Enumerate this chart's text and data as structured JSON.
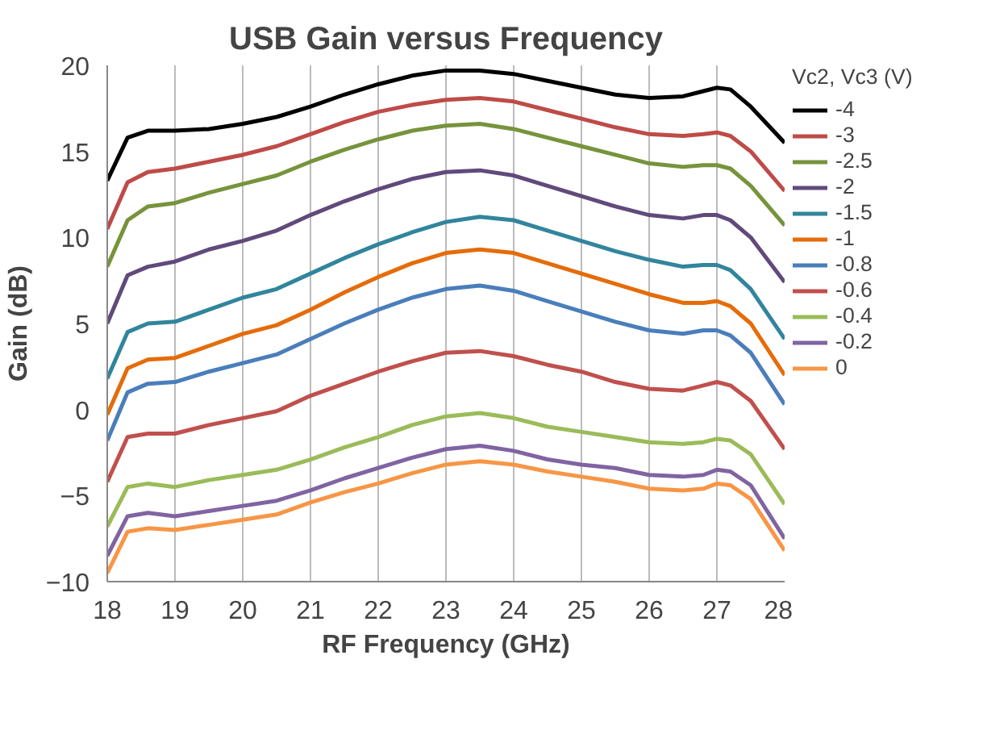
{
  "chart_data": {
    "type": "line",
    "title": "USB Gain versus Frequency",
    "xlabel": "RF Frequency (GHz)",
    "ylabel": "Gain (dB)",
    "legend_title": "Vc2, Vc3 (V)",
    "x": [
      18,
      18.3,
      18.6,
      19,
      19.5,
      20,
      20.5,
      21,
      21.5,
      22,
      22.5,
      23,
      23.5,
      24,
      24.5,
      25,
      25.5,
      26,
      26.5,
      26.8,
      27,
      27.2,
      27.5,
      28
    ],
    "xlim": [
      18,
      28
    ],
    "xticks": [
      18,
      19,
      20,
      21,
      22,
      23,
      24,
      25,
      26,
      27,
      28
    ],
    "ylim": [
      -10,
      20
    ],
    "yticks": [
      -10,
      -5,
      0,
      5,
      10,
      15,
      20
    ],
    "grid": "x",
    "legend": "right",
    "marker": "none",
    "line_style": "solid",
    "series": [
      {
        "name": "-4",
        "color": "#000000",
        "values": [
          13.3,
          15.8,
          16.2,
          16.2,
          16.3,
          16.6,
          17.0,
          17.6,
          18.3,
          18.9,
          19.4,
          19.7,
          19.7,
          19.5,
          19.1,
          18.7,
          18.3,
          18.1,
          18.2,
          18.5,
          18.7,
          18.6,
          17.6,
          15.5
        ]
      },
      {
        "name": "-3",
        "color": "#be4b48",
        "values": [
          10.5,
          13.2,
          13.8,
          14.0,
          14.4,
          14.8,
          15.3,
          16.0,
          16.7,
          17.3,
          17.7,
          18.0,
          18.1,
          17.9,
          17.4,
          16.9,
          16.4,
          16.0,
          15.9,
          16.0,
          16.1,
          15.9,
          15.0,
          12.7
        ]
      },
      {
        "name": "-2.5",
        "color": "#77933c",
        "values": [
          8.3,
          11.0,
          11.8,
          12.0,
          12.6,
          13.1,
          13.6,
          14.4,
          15.1,
          15.7,
          16.2,
          16.5,
          16.6,
          16.3,
          15.8,
          15.3,
          14.8,
          14.3,
          14.1,
          14.2,
          14.2,
          14.0,
          13.0,
          10.7
        ]
      },
      {
        "name": "-2",
        "color": "#604a7b",
        "values": [
          5.0,
          7.8,
          8.3,
          8.6,
          9.3,
          9.8,
          10.4,
          11.3,
          12.1,
          12.8,
          13.4,
          13.8,
          13.9,
          13.6,
          13.0,
          12.4,
          11.8,
          11.3,
          11.1,
          11.3,
          11.3,
          11.0,
          10.0,
          7.4
        ]
      },
      {
        "name": "-1.5",
        "color": "#31859c",
        "values": [
          1.8,
          4.5,
          5.0,
          5.1,
          5.8,
          6.5,
          7.0,
          7.9,
          8.8,
          9.6,
          10.3,
          10.9,
          11.2,
          11.0,
          10.4,
          9.8,
          9.2,
          8.7,
          8.3,
          8.4,
          8.4,
          8.1,
          7.0,
          4.1
        ]
      },
      {
        "name": "-1",
        "color": "#e46c0a",
        "values": [
          -0.3,
          2.4,
          2.9,
          3.0,
          3.7,
          4.4,
          4.9,
          5.8,
          6.8,
          7.7,
          8.5,
          9.1,
          9.3,
          9.1,
          8.5,
          7.9,
          7.3,
          6.7,
          6.2,
          6.2,
          6.3,
          6.0,
          5.0,
          2.0
        ]
      },
      {
        "name": "-0.8",
        "color": "#4a7ebb",
        "values": [
          -1.8,
          1.0,
          1.5,
          1.6,
          2.2,
          2.7,
          3.2,
          4.1,
          5.0,
          5.8,
          6.5,
          7.0,
          7.2,
          6.9,
          6.3,
          5.7,
          5.1,
          4.6,
          4.4,
          4.6,
          4.6,
          4.3,
          3.3,
          0.3
        ]
      },
      {
        "name": "-0.6",
        "color": "#c0504d",
        "values": [
          -4.2,
          -1.6,
          -1.4,
          -1.4,
          -0.9,
          -0.5,
          -0.1,
          0.8,
          1.5,
          2.2,
          2.8,
          3.3,
          3.4,
          3.1,
          2.6,
          2.2,
          1.6,
          1.2,
          1.1,
          1.4,
          1.6,
          1.4,
          0.5,
          -2.3
        ]
      },
      {
        "name": "-0.4",
        "color": "#9bbb59",
        "values": [
          -6.8,
          -4.5,
          -4.3,
          -4.5,
          -4.1,
          -3.8,
          -3.5,
          -2.9,
          -2.2,
          -1.6,
          -0.9,
          -0.4,
          -0.2,
          -0.5,
          -1.0,
          -1.3,
          -1.6,
          -1.9,
          -2.0,
          -1.9,
          -1.7,
          -1.8,
          -2.6,
          -5.5
        ]
      },
      {
        "name": "-0.2",
        "color": "#8064a2",
        "values": [
          -8.5,
          -6.2,
          -6.0,
          -6.2,
          -5.9,
          -5.6,
          -5.3,
          -4.7,
          -4.0,
          -3.4,
          -2.8,
          -2.3,
          -2.1,
          -2.4,
          -2.9,
          -3.2,
          -3.4,
          -3.8,
          -3.9,
          -3.8,
          -3.5,
          -3.6,
          -4.4,
          -7.5
        ]
      },
      {
        "name": "0",
        "color": "#f79646",
        "values": [
          -9.5,
          -7.1,
          -6.9,
          -7.0,
          -6.7,
          -6.4,
          -6.1,
          -5.4,
          -4.8,
          -4.3,
          -3.7,
          -3.2,
          -3.0,
          -3.2,
          -3.6,
          -3.9,
          -4.2,
          -4.6,
          -4.7,
          -4.6,
          -4.3,
          -4.4,
          -5.2,
          -8.2
        ]
      }
    ]
  }
}
